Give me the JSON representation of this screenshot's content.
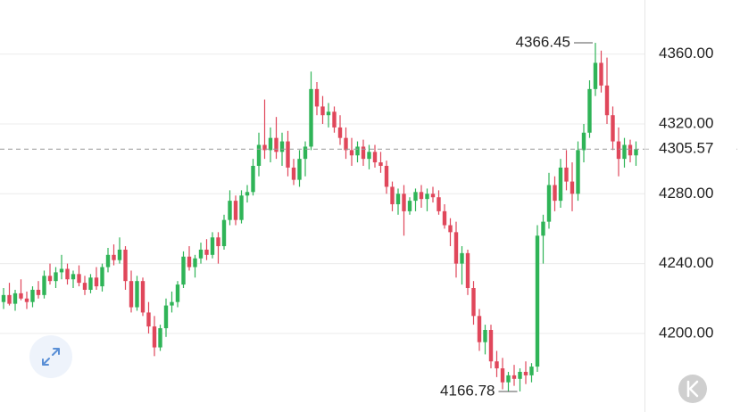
{
  "chart_data": {
    "type": "candlestick",
    "ohlc": [
      [
        4218,
        4226,
        4214,
        4222
      ],
      [
        4222,
        4229,
        4216,
        4217
      ],
      [
        4217,
        4225,
        4213,
        4223
      ],
      [
        4223,
        4231,
        4219,
        4220
      ],
      [
        4220,
        4224,
        4214,
        4218
      ],
      [
        4218,
        4227,
        4215,
        4225
      ],
      [
        4225,
        4230,
        4220,
        4222
      ],
      [
        4222,
        4236,
        4220,
        4233
      ],
      [
        4233,
        4240,
        4228,
        4230
      ],
      [
        4230,
        4238,
        4226,
        4235
      ],
      [
        4235,
        4245,
        4231,
        4237
      ],
      [
        4237,
        4240,
        4228,
        4231
      ],
      [
        4231,
        4236,
        4226,
        4234
      ],
      [
        4234,
        4239,
        4227,
        4229
      ],
      [
        4229,
        4233,
        4222,
        4225
      ],
      [
        4225,
        4234,
        4223,
        4232
      ],
      [
        4232,
        4238,
        4225,
        4227
      ],
      [
        4227,
        4240,
        4224,
        4238
      ],
      [
        4238,
        4249,
        4235,
        4245
      ],
      [
        4245,
        4251,
        4239,
        4242
      ],
      [
        4242,
        4255,
        4240,
        4248
      ],
      [
        4248,
        4250,
        4225,
        4230
      ],
      [
        4230,
        4236,
        4212,
        4215
      ],
      [
        4215,
        4233,
        4213,
        4230
      ],
      [
        4230,
        4232,
        4210,
        4212
      ],
      [
        4212,
        4218,
        4200,
        4204
      ],
      [
        4204,
        4210,
        4187,
        4192
      ],
      [
        4192,
        4205,
        4190,
        4203
      ],
      [
        4203,
        4220,
        4198,
        4216
      ],
      [
        4216,
        4224,
        4212,
        4218
      ],
      [
        4218,
        4230,
        4215,
        4228
      ],
      [
        4228,
        4247,
        4226,
        4244
      ],
      [
        4244,
        4250,
        4236,
        4238
      ],
      [
        4238,
        4245,
        4232,
        4243
      ],
      [
        4243,
        4252,
        4240,
        4248
      ],
      [
        4248,
        4254,
        4242,
        4245
      ],
      [
        4245,
        4258,
        4243,
        4255
      ],
      [
        4255,
        4258,
        4240,
        4250
      ],
      [
        4250,
        4268,
        4248,
        4265
      ],
      [
        4265,
        4282,
        4262,
        4276
      ],
      [
        4276,
        4279,
        4262,
        4265
      ],
      [
        4265,
        4282,
        4263,
        4279
      ],
      [
        4279,
        4285,
        4275,
        4281
      ],
      [
        4281,
        4300,
        4279,
        4296
      ],
      [
        4296,
        4315,
        4290,
        4308
      ],
      [
        4308,
        4334,
        4300,
        4305
      ],
      [
        4305,
        4318,
        4298,
        4312
      ],
      [
        4312,
        4324,
        4300,
        4304
      ],
      [
        4304,
        4315,
        4296,
        4310
      ],
      [
        4310,
        4316,
        4290,
        4295
      ],
      [
        4295,
        4300,
        4285,
        4288
      ],
      [
        4288,
        4305,
        4284,
        4300
      ],
      [
        4300,
        4310,
        4290,
        4307
      ],
      [
        4307,
        4350,
        4305,
        4340
      ],
      [
        4340,
        4344,
        4325,
        4330
      ],
      [
        4330,
        4336,
        4320,
        4325
      ],
      [
        4325,
        4332,
        4318,
        4327
      ],
      [
        4327,
        4330,
        4315,
        4318
      ],
      [
        4318,
        4325,
        4308,
        4312
      ],
      [
        4312,
        4318,
        4300,
        4305
      ],
      [
        4305,
        4312,
        4296,
        4302
      ],
      [
        4302,
        4310,
        4298,
        4307
      ],
      [
        4307,
        4311,
        4296,
        4300
      ],
      [
        4300,
        4308,
        4294,
        4304
      ],
      [
        4304,
        4308,
        4295,
        4298
      ],
      [
        4298,
        4304,
        4292,
        4296
      ],
      [
        4296,
        4299,
        4280,
        4284
      ],
      [
        4284,
        4287,
        4270,
        4274
      ],
      [
        4274,
        4283,
        4268,
        4280
      ],
      [
        4280,
        4285,
        4256,
        4270
      ],
      [
        4270,
        4278,
        4268,
        4276
      ],
      [
        4276,
        4283,
        4270,
        4281
      ],
      [
        4281,
        4285,
        4272,
        4277
      ],
      [
        4277,
        4283,
        4270,
        4280
      ],
      [
        4280,
        4284,
        4275,
        4278
      ],
      [
        4278,
        4282,
        4268,
        4270
      ],
      [
        4270,
        4274,
        4260,
        4262
      ],
      [
        4262,
        4266,
        4250,
        4258
      ],
      [
        4258,
        4264,
        4232,
        4240
      ],
      [
        4240,
        4250,
        4228,
        4246
      ],
      [
        4246,
        4248,
        4222,
        4226
      ],
      [
        4226,
        4230,
        4205,
        4210
      ],
      [
        4210,
        4214,
        4190,
        4195
      ],
      [
        4195,
        4205,
        4188,
        4202
      ],
      [
        4202,
        4205,
        4180,
        4184
      ],
      [
        4184,
        4190,
        4175,
        4180
      ],
      [
        4180,
        4186,
        4168,
        4172
      ],
      [
        4172,
        4178,
        4167,
        4176
      ],
      [
        4176,
        4182,
        4170,
        4174
      ],
      [
        4174,
        4180,
        4166.78,
        4178
      ],
      [
        4178,
        4184,
        4171,
        4176
      ],
      [
        4176,
        4183,
        4172,
        4181
      ],
      [
        4181,
        4262,
        4178,
        4256
      ],
      [
        4256,
        4268,
        4240,
        4264
      ],
      [
        4264,
        4292,
        4260,
        4285
      ],
      [
        4285,
        4290,
        4270,
        4276
      ],
      [
        4276,
        4300,
        4272,
        4295
      ],
      [
        4295,
        4305,
        4282,
        4287
      ],
      [
        4287,
        4298,
        4270,
        4280
      ],
      [
        4280,
        4310,
        4276,
        4305
      ],
      [
        4305,
        4320,
        4298,
        4315
      ],
      [
        4315,
        4345,
        4312,
        4340
      ],
      [
        4340,
        4366.45,
        4336,
        4355
      ],
      [
        4355,
        4362,
        4338,
        4342
      ],
      [
        4342,
        4358,
        4320,
        4325
      ],
      [
        4325,
        4330,
        4305,
        4310
      ],
      [
        4310,
        4318,
        4290,
        4300
      ],
      [
        4300,
        4312,
        4295,
        4308
      ],
      [
        4308,
        4311,
        4298,
        4302
      ],
      [
        4302,
        4310,
        4296,
        4305.57
      ]
    ],
    "up_color": "#2fb457",
    "down_color": "#e0475b",
    "ylim": [
      4155,
      4391
    ],
    "yticks": [
      {
        "value": 4200,
        "label": "4200.00"
      },
      {
        "value": 4240,
        "label": "4240.00"
      },
      {
        "value": 4280,
        "label": "4280.00"
      },
      {
        "value": 4320,
        "label": "4320.00"
      },
      {
        "value": 4360,
        "label": "4360.00"
      }
    ],
    "grid": true,
    "last_price": 4305.57,
    "max_price": 4366.45,
    "min_price": 4166.78
  }
}
